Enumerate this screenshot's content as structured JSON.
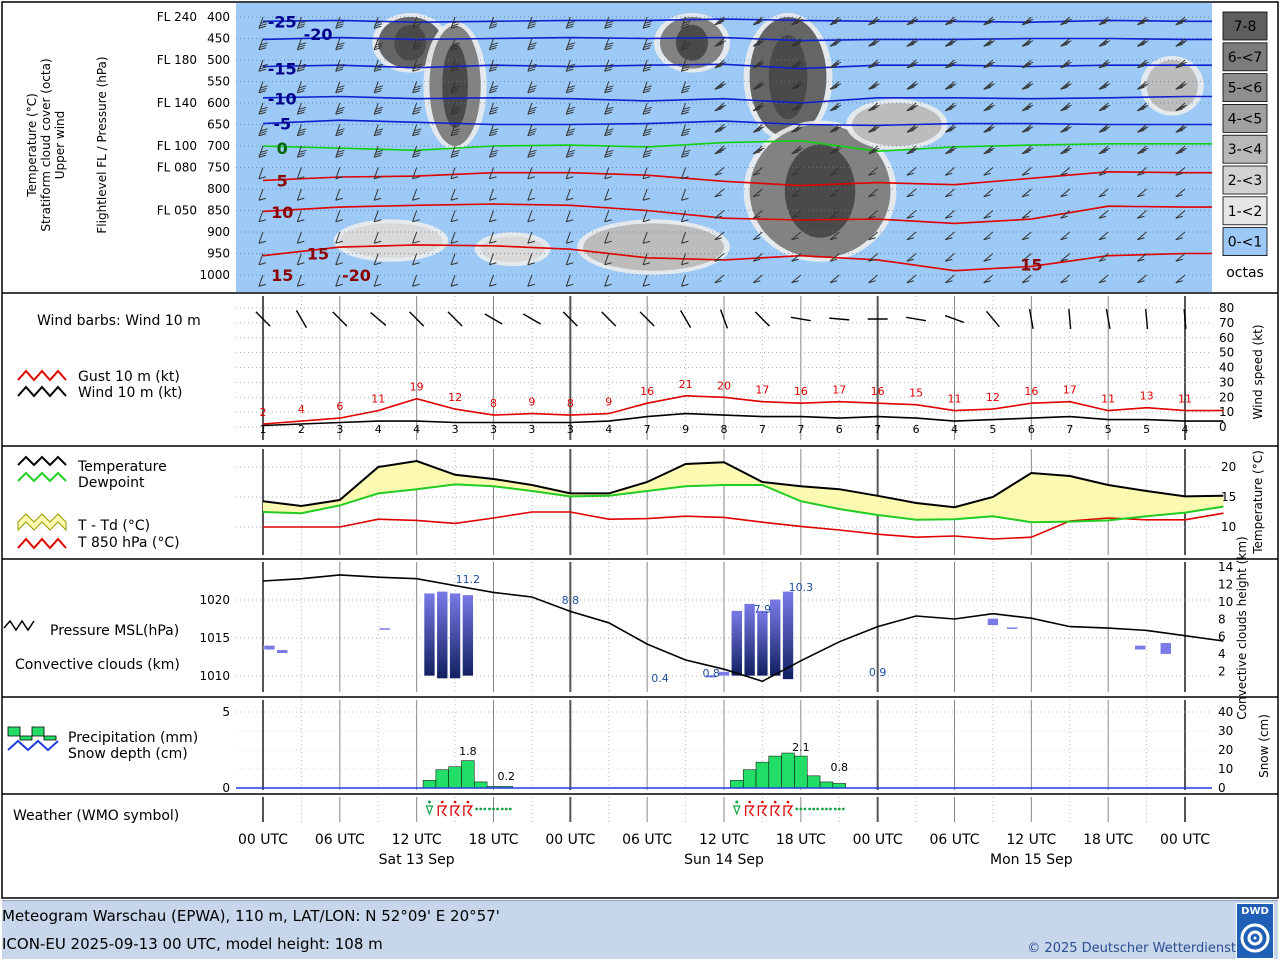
{
  "footer": {
    "line1": "Meteogram Warschau (EPWA), 110 m, LAT/LON: N 52°09' E 20°57'",
    "line2": "ICON-EU 2025-09-13 00 UTC, model height: 108 m",
    "copyright": "© 2025 Deutscher Wetterdienst",
    "logo_text": "DWD"
  },
  "panel1": {
    "label_col1": [
      "Temperature (°C)",
      "Stratiform cloud cover (octa)",
      "Upper wind"
    ],
    "label_col2": "Flightlevel FL / Pressure (hPa)",
    "levels": [
      {
        "fl": "FL 240",
        "p": "400"
      },
      {
        "fl": "",
        "p": "450"
      },
      {
        "fl": "FL 180",
        "p": "500"
      },
      {
        "fl": "",
        "p": "550"
      },
      {
        "fl": "FL 140",
        "p": "600"
      },
      {
        "fl": "",
        "p": "650"
      },
      {
        "fl": "FL 100",
        "p": "700"
      },
      {
        "fl": "FL 080",
        "p": "750"
      },
      {
        "fl": "",
        "p": "800"
      },
      {
        "fl": "FL 050",
        "p": "850"
      },
      {
        "fl": "",
        "p": "900"
      },
      {
        "fl": "",
        "p": "950"
      },
      {
        "fl": "",
        "p": "1000"
      }
    ],
    "temp_labels": [
      {
        "t": "-25",
        "x": 1.5,
        "p": 410,
        "color": "#00008b"
      },
      {
        "t": "-20",
        "x": 4.3,
        "p": 440,
        "color": "#00008b"
      },
      {
        "t": "-15",
        "x": 1.5,
        "p": 520,
        "color": "#00008b"
      },
      {
        "t": "-10",
        "x": 1.5,
        "p": 590,
        "color": "#00008b"
      },
      {
        "t": "-5",
        "x": 1.5,
        "p": 648,
        "color": "#00008b"
      },
      {
        "t": "0",
        "x": 1.5,
        "p": 705,
        "color": "#006400"
      },
      {
        "t": "5",
        "x": 1.5,
        "p": 780,
        "color": "#8b0000"
      },
      {
        "t": "10",
        "x": 1.5,
        "p": 853,
        "color": "#8b0000"
      },
      {
        "t": "15",
        "x": 4.3,
        "p": 950,
        "color": "#8b0000"
      },
      {
        "t": "15",
        "x": 1.5,
        "p": 1000,
        "color": "#8b0000"
      },
      {
        "t": "-20",
        "x": 7.3,
        "p": 1000,
        "color": "#8b0000"
      },
      {
        "t": "15",
        "x": 60.0,
        "p": 975,
        "color": "#8b0000"
      }
    ],
    "legend": [
      "7-8",
      "6-<7",
      "5-<6",
      "4-<5",
      "3-<4",
      "2-<3",
      "1-<2",
      "0-<1",
      "octas"
    ]
  },
  "panel2": {
    "title": "Wind barbs: Wind 10 m",
    "legend_gust": "Gust 10 m (kt)",
    "legend_wind": "Wind 10 m (kt)",
    "ylabel": "Wind speed (kt)",
    "ticks": [
      "0",
      "10",
      "20",
      "30",
      "40",
      "50",
      "60",
      "70",
      "80"
    ]
  },
  "panel3": {
    "legend_t": "Temperature",
    "legend_td": "Dewpoint",
    "legend_spread": "T - Td (°C)",
    "legend_t850": "T 850 hPa (°C)",
    "ylabel": "Temperature (°C)",
    "ticks": [
      "10",
      "15",
      "20"
    ]
  },
  "panel4": {
    "legend_p": "Pressure MSL(hPa)",
    "legend_c": "Convective clouds (km)",
    "ylabel": "Convective clouds height (km)",
    "ticks_left": [
      "1010",
      "1015",
      "1020"
    ],
    "ticks_right": [
      "2",
      "4",
      "6",
      "8",
      "10",
      "12",
      "14"
    ],
    "labels": [
      {
        "t": "11.2",
        "x": 16.0
      },
      {
        "t": "8.8",
        "x": 24.0
      },
      {
        "t": "0.4",
        "x": 31.0
      },
      {
        "t": "0.8",
        "x": 35.0
      },
      {
        "t": "7.9",
        "x": 39.0
      },
      {
        "t": "10.3",
        "x": 42.0
      },
      {
        "t": "0.9",
        "x": 48.0
      }
    ]
  },
  "panel5": {
    "legend_precip": "Precipitation (mm)",
    "legend_snow": "Snow depth (cm)",
    "ylabel": "Snow (cm)",
    "ticks_left": [
      "0",
      "5"
    ],
    "ticks_right": [
      "0",
      "10",
      "20",
      "30",
      "40"
    ],
    "labels": [
      {
        "t": "1.8",
        "x": 16.0
      },
      {
        "t": "0.2",
        "x": 19.0
      },
      {
        "t": "2.1",
        "x": 42.0
      },
      {
        "t": "0.8",
        "x": 45.0
      }
    ]
  },
  "panel6": {
    "title": "Weather (WMO symbol)"
  },
  "xaxis": {
    "ticks": [
      "00 UTC",
      "06 UTC",
      "12 UTC",
      "18 UTC",
      "00 UTC",
      "06 UTC",
      "12 UTC",
      "18 UTC",
      "00 UTC",
      "06 UTC",
      "12 UTC",
      "18 UTC",
      "00 UTC"
    ],
    "ticks_h": [
      0,
      6,
      12,
      18,
      24,
      30,
      36,
      42,
      48,
      54,
      60,
      66,
      72
    ],
    "days": [
      {
        "label": "Sat 13 Sep",
        "h": 12
      },
      {
        "label": "Sun 14 Sep",
        "h": 36
      },
      {
        "label": "Mon 15 Sep",
        "h": 60
      }
    ]
  },
  "colors": {
    "sky": "#9cc9f5",
    "gust": "#e00000",
    "wind": "#000000",
    "temp": "#000000",
    "dew": "#22cc22",
    "spread": "#fbfab0",
    "t850": "#e00000",
    "precip": "#22dd66",
    "snow": "#1f3fe0",
    "conv_top": "#7a7ae8",
    "conv_bottom": "#102060"
  },
  "chart_data": [
    {
      "type": "heatmap",
      "title": "Temperature (°C), Stratiform cloud cover (octa), Upper wind",
      "x_hours": [
        0,
        75
      ],
      "ylim_hpa": [
        400,
        1000
      ],
      "isotherms": [
        {
          "t": -25,
          "x": [
            0,
            6,
            12,
            18,
            24,
            30,
            36,
            42,
            48,
            54,
            60,
            66,
            72,
            75
          ],
          "p": [
            410,
            408,
            412,
            410,
            408,
            408,
            405,
            408,
            410,
            410,
            412,
            408,
            410,
            410
          ]
        },
        {
          "t": -20,
          "x": [
            0,
            6,
            12,
            18,
            24,
            30,
            36,
            42,
            48,
            54,
            60,
            66,
            72,
            75
          ],
          "p": [
            452,
            448,
            452,
            450,
            448,
            450,
            448,
            455,
            452,
            452,
            450,
            450,
            452,
            452
          ]
        },
        {
          "t": -15,
          "x": [
            0,
            6,
            12,
            18,
            24,
            30,
            36,
            42,
            48,
            54,
            60,
            66,
            72,
            75
          ],
          "p": [
            515,
            512,
            518,
            512,
            515,
            512,
            510,
            520,
            512,
            512,
            515,
            512,
            512,
            512
          ]
        },
        {
          "t": -10,
          "x": [
            0,
            6,
            12,
            18,
            24,
            30,
            36,
            42,
            48,
            54,
            60,
            66,
            72,
            75
          ],
          "p": [
            588,
            585,
            590,
            588,
            590,
            595,
            590,
            600,
            588,
            588,
            590,
            588,
            585,
            585
          ]
        },
        {
          "t": -5,
          "x": [
            0,
            6,
            12,
            18,
            24,
            30,
            36,
            42,
            48,
            54,
            60,
            66,
            72,
            75
          ],
          "p": [
            648,
            640,
            645,
            650,
            650,
            648,
            642,
            650,
            652,
            648,
            648,
            650,
            650,
            650
          ]
        },
        {
          "t": 0,
          "x": [
            0,
            6,
            12,
            18,
            24,
            30,
            36,
            42,
            48,
            54,
            60,
            66,
            72,
            75
          ],
          "p": [
            700,
            705,
            710,
            700,
            698,
            702,
            692,
            688,
            712,
            702,
            698,
            695,
            695,
            695
          ]
        },
        {
          "t": 5,
          "x": [
            0,
            6,
            12,
            18,
            24,
            30,
            36,
            42,
            48,
            54,
            60,
            66,
            72,
            75
          ],
          "p": [
            780,
            772,
            770,
            762,
            762,
            768,
            782,
            792,
            785,
            790,
            775,
            760,
            762,
            762
          ]
        },
        {
          "t": 10,
          "x": [
            0,
            6,
            12,
            18,
            24,
            30,
            36,
            42,
            48,
            54,
            60,
            66,
            72,
            75
          ],
          "p": [
            852,
            842,
            838,
            835,
            838,
            850,
            868,
            872,
            870,
            880,
            870,
            840,
            842,
            842
          ]
        },
        {
          "t": 15,
          "x": [
            0,
            6,
            12,
            18,
            24,
            30,
            36,
            42,
            48,
            54,
            60,
            66,
            72,
            75
          ],
          "p": [
            955,
            935,
            930,
            932,
            940,
            960,
            965,
            955,
            965,
            990,
            980,
            955,
            950,
            950
          ]
        }
      ],
      "clouds": [
        {
          "x": [
            9,
            14
          ],
          "p": [
            400,
            520
          ],
          "octa": 6
        },
        {
          "x": [
            13,
            17
          ],
          "p": [
            420,
            700
          ],
          "octa": 5
        },
        {
          "x": [
            31,
            36
          ],
          "p": [
            400,
            520
          ],
          "octa": 5
        },
        {
          "x": [
            38,
            44
          ],
          "p": [
            400,
            680
          ],
          "octa": 6
        },
        {
          "x": [
            38,
            49
          ],
          "p": [
            650,
            960
          ],
          "octa": 5
        },
        {
          "x": [
            46,
            53
          ],
          "p": [
            600,
            700
          ],
          "octa": 3
        },
        {
          "x": [
            69,
            73
          ],
          "p": [
            500,
            620
          ],
          "octa": 3
        },
        {
          "x": [
            6,
            14
          ],
          "p": [
            880,
            960
          ],
          "octa": 2
        },
        {
          "x": [
            25,
            36
          ],
          "p": [
            880,
            990
          ],
          "octa": 3
        },
        {
          "x": [
            17,
            22
          ],
          "p": [
            910,
            970
          ],
          "octa": 2
        }
      ]
    },
    {
      "type": "line",
      "title": "Gust 10 m / Wind 10 m",
      "ylabel": "Wind speed (kt)",
      "ylim": [
        0,
        80
      ],
      "x": [
        0,
        3,
        6,
        9,
        12,
        15,
        18,
        21,
        24,
        27,
        30,
        33,
        36,
        39,
        42,
        45,
        48,
        51,
        54,
        57,
        60,
        63,
        66,
        69,
        72,
        75
      ],
      "series": [
        {
          "name": "Gust 10 m (kt)",
          "values": [
            2,
            4,
            6,
            11,
            19,
            12,
            8,
            9,
            8,
            9,
            16,
            21,
            20,
            17,
            16,
            17,
            16,
            15,
            11,
            12,
            16,
            17,
            11,
            13,
            11,
            11
          ]
        },
        {
          "name": "Wind 10 m (kt)",
          "values": [
            1,
            2,
            3,
            4,
            4,
            3,
            3,
            3,
            3,
            4,
            7,
            9,
            8,
            7,
            7,
            6,
            7,
            6,
            4,
            5,
            6,
            7,
            5,
            5,
            4,
            4
          ]
        }
      ],
      "wind_dir_deg": [
        135,
        150,
        135,
        130,
        135,
        135,
        120,
        120,
        135,
        135,
        135,
        150,
        160,
        135,
        100,
        95,
        90,
        100,
        110,
        140,
        170,
        175,
        170,
        175,
        175,
        175
      ]
    },
    {
      "type": "line",
      "title": "Temperature / Dewpoint / T 850 hPa",
      "ylabel": "Temperature (°C)",
      "ylim": [
        7,
        22
      ],
      "x": [
        0,
        3,
        6,
        9,
        12,
        15,
        18,
        21,
        24,
        27,
        30,
        33,
        36,
        39,
        42,
        45,
        48,
        51,
        54,
        57,
        60,
        63,
        66,
        69,
        72,
        75
      ],
      "series": [
        {
          "name": "Temperature",
          "values": [
            14.3,
            13.5,
            14.5,
            20.0,
            21.0,
            18.7,
            18.0,
            17.0,
            15.6,
            15.6,
            17.5,
            20.5,
            20.8,
            17.5,
            16.8,
            16.3,
            15.2,
            14.0,
            13.3,
            15.0,
            19.0,
            18.5,
            17.0,
            16.0,
            15.1,
            15.2
          ]
        },
        {
          "name": "Dewpoint",
          "values": [
            12.5,
            12.3,
            13.6,
            15.6,
            16.3,
            17.1,
            16.8,
            16.0,
            15.1,
            15.2,
            16.0,
            16.8,
            17.0,
            17.0,
            14.3,
            13.0,
            12.0,
            11.2,
            11.3,
            11.8,
            10.8,
            10.9,
            11.1,
            11.8,
            12.4,
            13.4
          ]
        },
        {
          "name": "T 850 hPa (°C)",
          "values": [
            10.0,
            10.0,
            10.0,
            11.3,
            11.1,
            10.6,
            11.5,
            12.5,
            12.5,
            11.3,
            11.4,
            11.8,
            11.6,
            10.8,
            10.1,
            9.5,
            8.8,
            8.3,
            8.5,
            8.0,
            8.3,
            11.0,
            11.5,
            11.2,
            11.2,
            12.3
          ]
        }
      ]
    },
    {
      "type": "bar",
      "title": "Pressure MSL / Convective clouds",
      "ylabel": "Convective clouds height (km)",
      "pressure_x": [
        0,
        3,
        6,
        9,
        12,
        15,
        18,
        21,
        24,
        27,
        30,
        33,
        36,
        39,
        42,
        45,
        48,
        51,
        54,
        57,
        60,
        63,
        66,
        69,
        72,
        75
      ],
      "pressure_hpa": [
        1022.5,
        1022.8,
        1023.3,
        1023.0,
        1022.8,
        1021.9,
        1021.0,
        1020.4,
        1018.5,
        1017.0,
        1014.2,
        1012.1,
        1010.9,
        1009.3,
        1012.0,
        1014.5,
        1016.5,
        1017.9,
        1017.5,
        1018.2,
        1017.6,
        1016.5,
        1016.3,
        1016.0,
        1015.3,
        1014.6
      ],
      "clouds": [
        {
          "x": 0.5,
          "base": 4.5,
          "top": 5.0
        },
        {
          "x": 1.5,
          "base": 4.1,
          "top": 4.5
        },
        {
          "x": 9.5,
          "base": 6.8,
          "top": 7.0
        },
        {
          "x": 13,
          "base": 1.5,
          "top": 11.0
        },
        {
          "x": 14,
          "base": 1.2,
          "top": 11.2
        },
        {
          "x": 15,
          "base": 1.2,
          "top": 11.0
        },
        {
          "x": 16,
          "base": 1.5,
          "top": 10.8
        },
        {
          "x": 35,
          "base": 1.3,
          "top": 1.6
        },
        {
          "x": 36,
          "base": 1.5,
          "top": 2.0
        },
        {
          "x": 37,
          "base": 1.5,
          "top": 9.0
        },
        {
          "x": 38,
          "base": 1.5,
          "top": 9.8
        },
        {
          "x": 39,
          "base": 1.5,
          "top": 9.0
        },
        {
          "x": 40,
          "base": 1.5,
          "top": 10.3
        },
        {
          "x": 41,
          "base": 1.1,
          "top": 11.2
        },
        {
          "x": 57,
          "base": 7.3,
          "top": 8.1
        },
        {
          "x": 58.5,
          "base": 7.0,
          "top": 7.1
        },
        {
          "x": 68.5,
          "base": 4.5,
          "top": 5.0
        },
        {
          "x": 70.5,
          "base": 4.0,
          "top": 5.3
        }
      ]
    },
    {
      "type": "bar",
      "title": "Precipitation / Snow depth",
      "ylabel": "Snow (cm)",
      "ylim": [
        0,
        6
      ],
      "x": [
        13,
        14,
        15,
        16,
        17,
        18,
        19,
        37,
        38,
        39,
        40,
        41,
        42,
        43,
        44,
        45
      ],
      "values": [
        0.5,
        1.2,
        1.4,
        1.8,
        0.4,
        0.1,
        0.1,
        0.5,
        1.2,
        1.7,
        2.1,
        2.3,
        2.1,
        0.8,
        0.4,
        0.3
      ]
    }
  ]
}
